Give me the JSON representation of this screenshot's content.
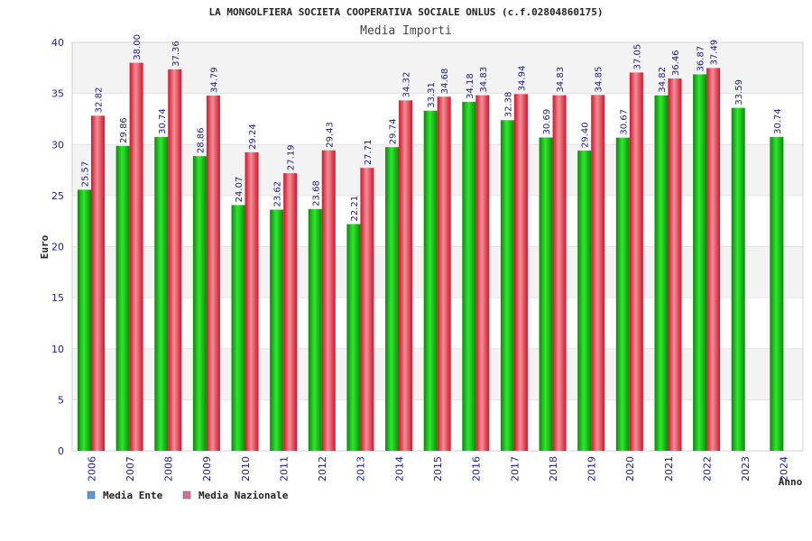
{
  "chart_data": {
    "type": "bar",
    "title": "LA MONGOLFIERA SOCIETA COOPERATIVA SOCIALE ONLUS (c.f.02804860175)",
    "subtitle": "Media Importi",
    "xlabel": "Anno",
    "ylabel": "Euro",
    "ylim": [
      0,
      40
    ],
    "yticks": [
      0,
      5,
      10,
      15,
      20,
      25,
      30,
      35,
      40
    ],
    "grid": true,
    "legend_position": "bottom-left",
    "categories": [
      "2006",
      "2007",
      "2008",
      "2009",
      "2010",
      "2011",
      "2012",
      "2013",
      "2014",
      "2015",
      "2016",
      "2017",
      "2018",
      "2019",
      "2020",
      "2021",
      "2022",
      "2023",
      "2024"
    ],
    "series": [
      {
        "name": "Media Ente",
        "legend_color": "#5b9bd5",
        "bar_color": "#1aa81a",
        "values": [
          25.57,
          29.86,
          30.74,
          28.86,
          24.07,
          23.62,
          23.68,
          22.21,
          29.74,
          33.31,
          34.18,
          32.38,
          30.69,
          29.4,
          30.67,
          34.82,
          36.87,
          33.59,
          30.74
        ],
        "labels": [
          "25.57",
          "29.86",
          "30.74",
          "28.86",
          "24.07",
          "23.62",
          "23.68",
          "22.21",
          "29.74",
          "33.31",
          "34.18",
          "32.38",
          "30.69",
          "29.40",
          "30.67",
          "34.82",
          "36.87",
          "33.59",
          "30.74"
        ]
      },
      {
        "name": "Media Nazionale",
        "legend_color": "#d66fa0",
        "bar_color": "#e8283a",
        "values": [
          32.82,
          38.0,
          37.36,
          34.79,
          29.24,
          27.19,
          29.43,
          27.71,
          34.32,
          34.68,
          34.83,
          34.94,
          34.83,
          34.85,
          37.05,
          36.46,
          37.49,
          null,
          null
        ],
        "labels": [
          "32.82",
          "38.00",
          "37.36",
          "34.79",
          "29.24",
          "27.19",
          "29.43",
          "27.71",
          "34.32",
          "34.68",
          "34.83",
          "34.94",
          "34.83",
          "34.85",
          "37.05",
          "36.46",
          "37.49",
          null,
          null
        ]
      }
    ]
  }
}
